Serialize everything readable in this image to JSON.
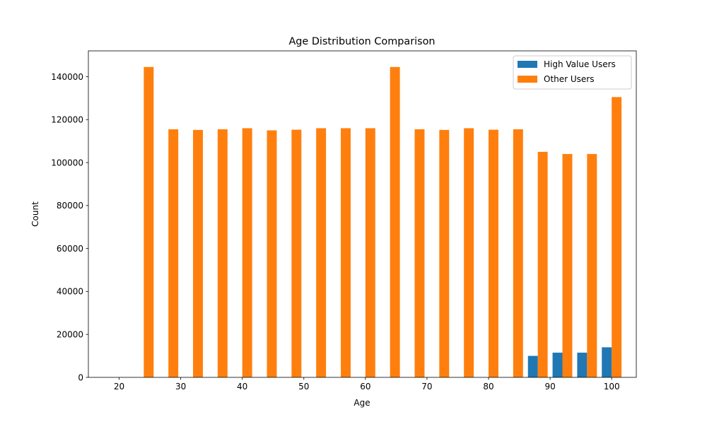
{
  "chart_data": {
    "type": "bar",
    "title": "Age Distribution Comparison",
    "xlabel": "Age",
    "ylabel": "Count",
    "xlim": [
      15,
      104
    ],
    "ylim": [
      0,
      152000
    ],
    "xticks": [
      20,
      30,
      40,
      50,
      60,
      70,
      80,
      90,
      100
    ],
    "yticks": [
      0,
      20000,
      40000,
      60000,
      80000,
      100000,
      120000,
      140000
    ],
    "grid": false,
    "legend_position": "top-right",
    "bins": [
      18,
      22,
      26,
      30,
      34,
      38,
      42,
      46,
      50,
      54,
      58,
      62,
      66,
      70,
      74,
      78,
      82,
      86,
      90,
      94,
      98
    ],
    "series": [
      {
        "name": "High Value Users",
        "color": "#1f77b4",
        "values": [
          0,
          0,
          0,
          0,
          0,
          0,
          0,
          0,
          0,
          0,
          0,
          0,
          0,
          0,
          0,
          0,
          0,
          10000,
          11500,
          11500,
          14000
        ]
      },
      {
        "name": "Other Users",
        "color": "#ff7f0e",
        "values": [
          0,
          144500,
          115500,
          115200,
          115500,
          116000,
          115000,
          115300,
          116000,
          116000,
          116000,
          144500,
          115500,
          115200,
          116000,
          115300,
          115500,
          105000,
          104000,
          104000,
          130500
        ]
      }
    ]
  }
}
